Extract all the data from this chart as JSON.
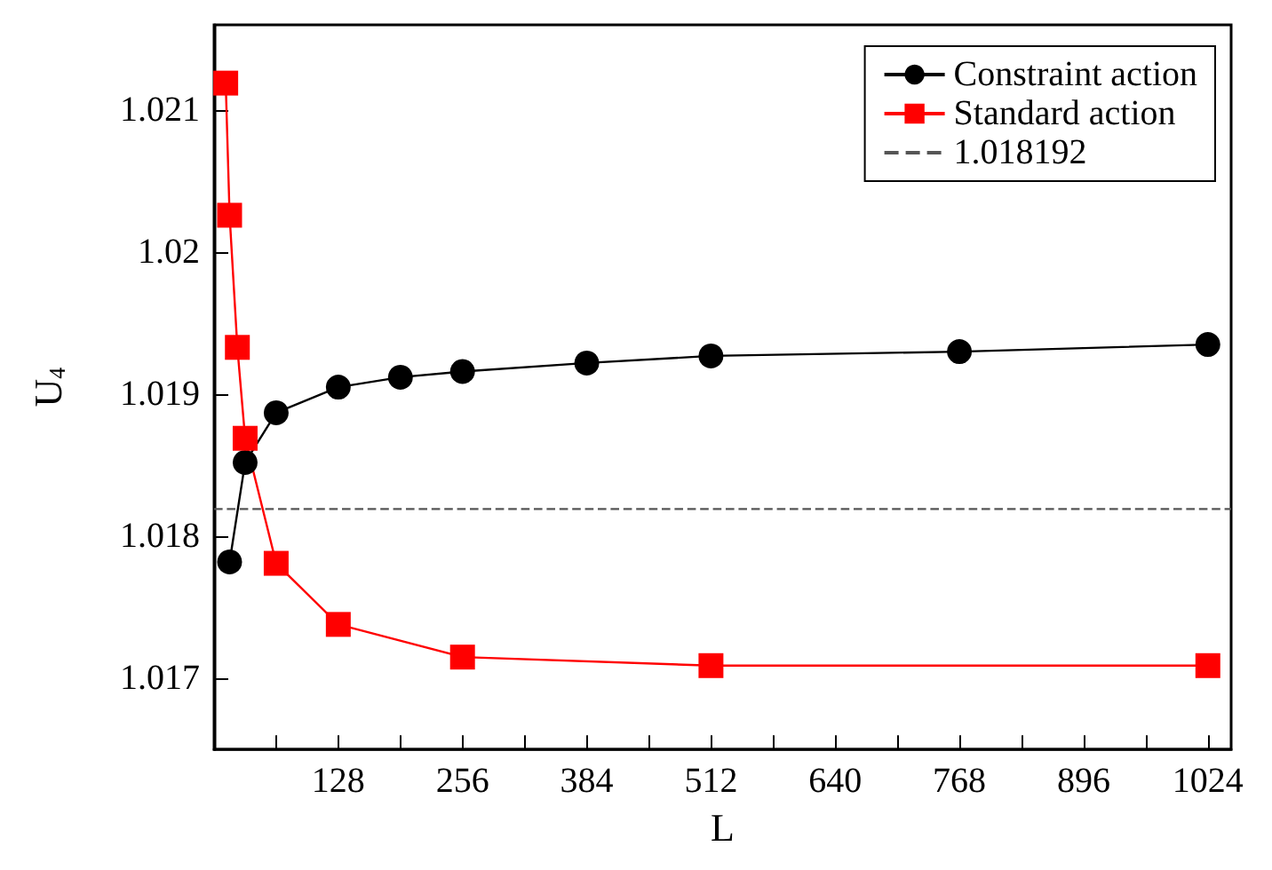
{
  "chart_data": {
    "type": "line",
    "xlabel": "L",
    "ylabel": "U$_{4}$",
    "xlim": [
      0,
      1048
    ],
    "ylim": [
      1.0165,
      1.0216
    ],
    "xticks": [
      {
        "value": 64,
        "label": null
      },
      128,
      {
        "value": 192,
        "label": null
      },
      256,
      {
        "value": 320,
        "label": null
      },
      384,
      {
        "value": 448,
        "label": null
      },
      512,
      {
        "value": 576,
        "label": null
      },
      640,
      {
        "value": 704,
        "label": null
      },
      768,
      {
        "value": 832,
        "label": null
      },
      896,
      {
        "value": 960,
        "label": null
      },
      1024
    ],
    "yticks": [
      1.017,
      1.018,
      1.019,
      1.02,
      1.021
    ],
    "grid": false,
    "legend": "top right",
    "line_style": "solid",
    "series": [
      {
        "name": "Constraint action",
        "color": "#000000",
        "marker": "circle",
        "x": [
          16,
          32,
          64,
          128,
          192,
          256,
          384,
          512,
          768,
          1024
        ],
        "values": [
          1.01782,
          1.01852,
          1.01887,
          1.01905,
          1.01912,
          1.01916,
          1.01922,
          1.01927,
          1.0193,
          1.01935
        ]
      },
      {
        "name": "Standard action",
        "color": "#ff0000",
        "marker": "square",
        "x": [
          12,
          16,
          24,
          32,
          64,
          128,
          256,
          512,
          1024
        ],
        "values": [
          1.02119,
          1.02026,
          1.01933,
          1.01869,
          1.01781,
          1.01738,
          1.01715,
          1.01709,
          1.01709
        ]
      }
    ],
    "ref_lines": [
      {
        "axis": "y",
        "value": 1.018192,
        "label": "1.018192",
        "color": "#555555",
        "line_style": "dashed"
      }
    ]
  }
}
